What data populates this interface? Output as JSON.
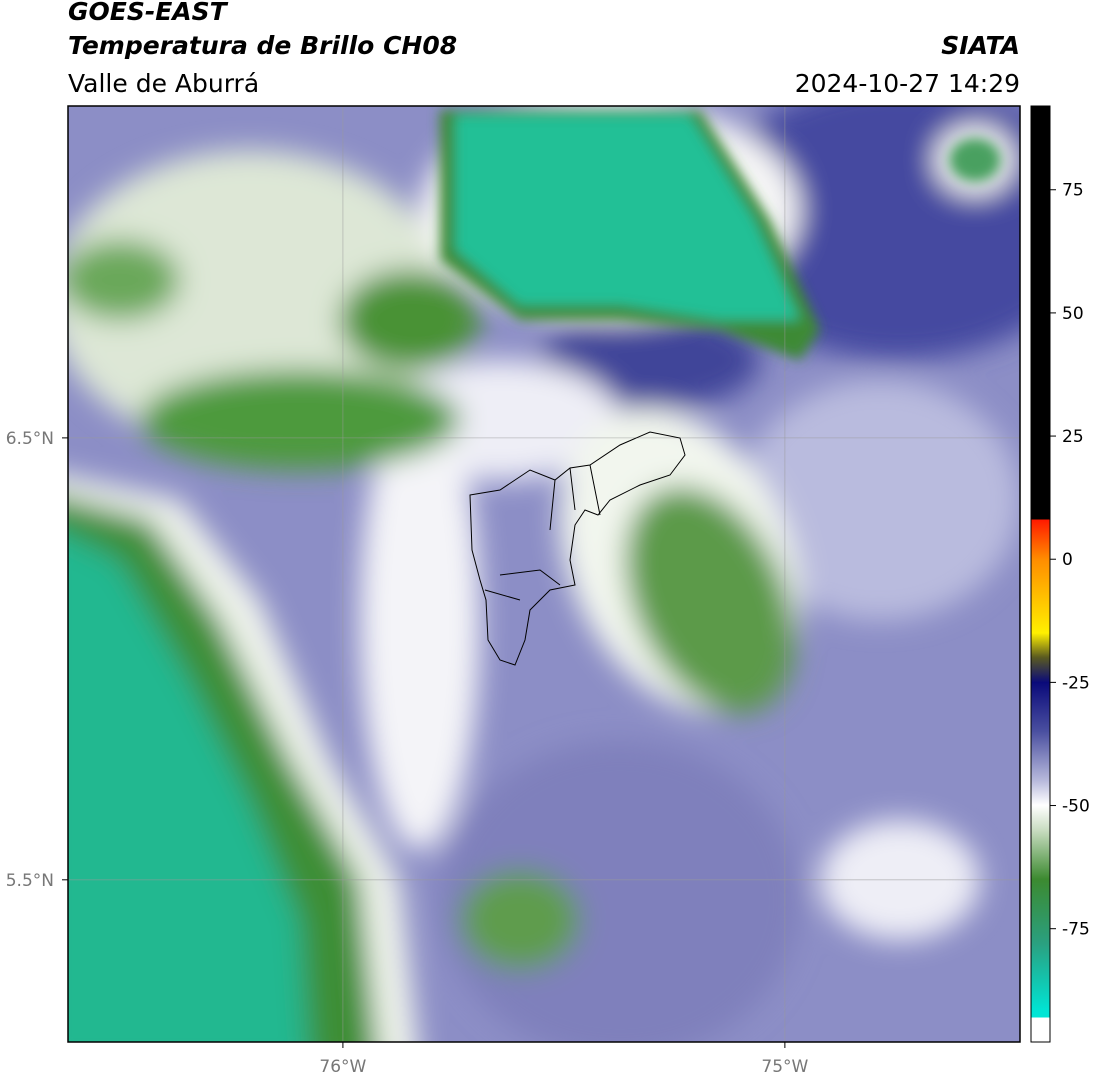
{
  "header": {
    "satellite": "GOES-EAST",
    "product": "Temperatura de Brillo CH08",
    "region": "Valle de Aburrá",
    "source": "SIATA",
    "datetime": "2024-10-27 14:29"
  },
  "map": {
    "xlim": [
      -76.622,
      -74.468
    ],
    "ylim": [
      5.133,
      7.251
    ],
    "xticks": [
      {
        "value": -76,
        "label": "76°W"
      },
      {
        "value": -75,
        "label": "75°W"
      }
    ],
    "yticks": [
      {
        "value": 6.5,
        "label": "6.5°N"
      },
      {
        "value": 5.5,
        "label": "5.5°N"
      }
    ],
    "grid": true
  },
  "colorbar": {
    "lim": [
      -98,
      92
    ],
    "ticks": [
      75,
      50,
      25,
      0,
      -25,
      -50,
      -75
    ]
  }
}
